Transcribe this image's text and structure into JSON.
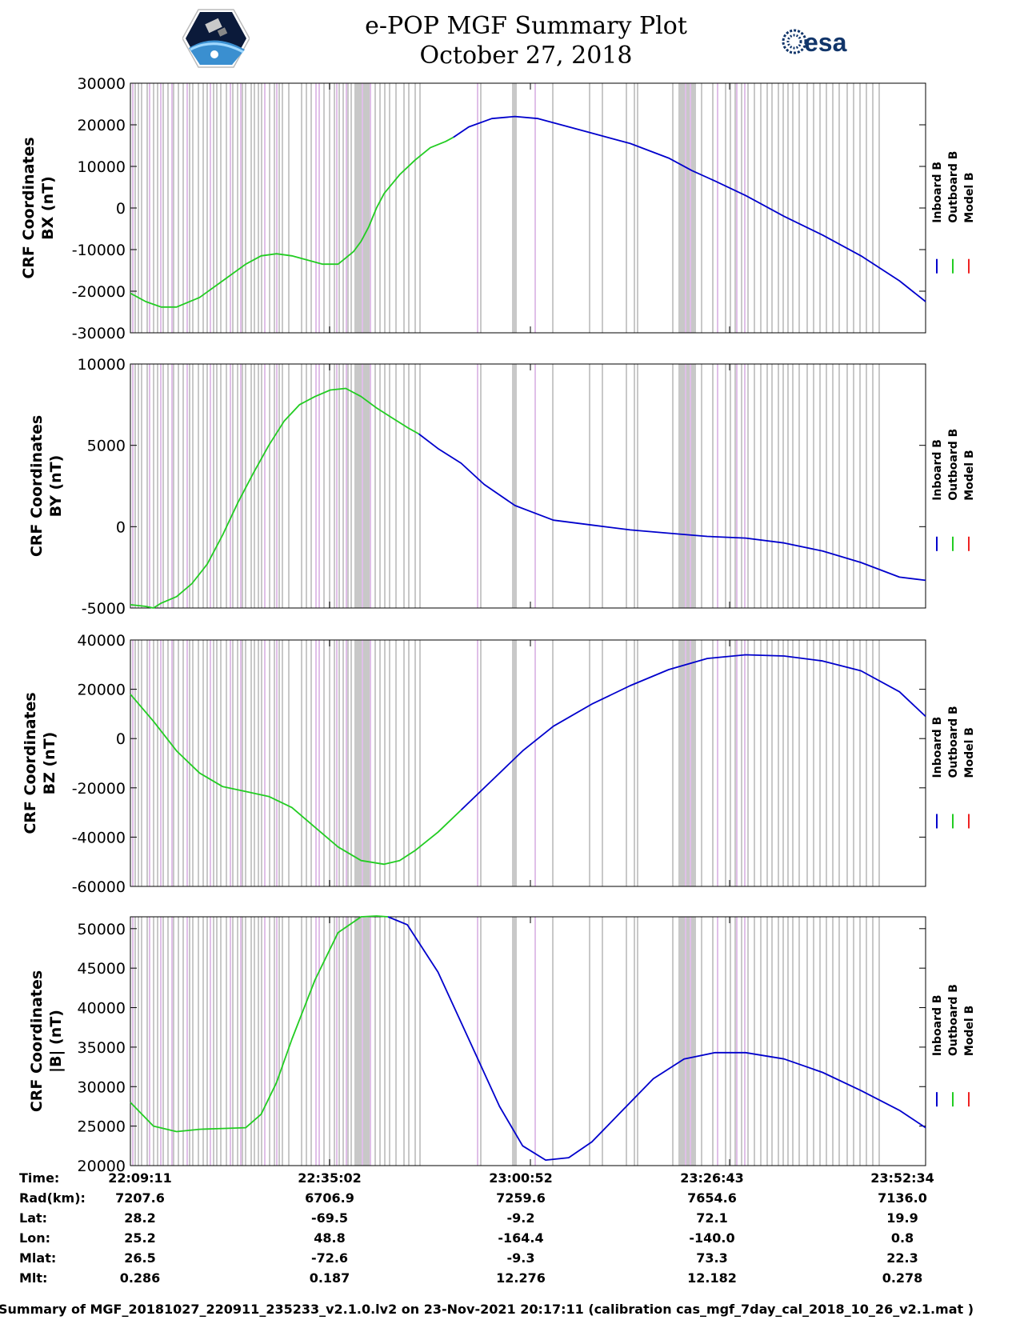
{
  "title": "e-POP MGF Summary Plot",
  "subtitle": "October 27, 2018",
  "logos": {
    "left": "cassiope-logo",
    "right_text": "esa"
  },
  "legend": [
    "Inboard B",
    "Outboard B",
    "Model B"
  ],
  "legend_colors": [
    "#0000cc",
    "#22cc22",
    "#ee2222"
  ],
  "event_colors": {
    "gray": "#c8c8c8",
    "violet": "#e0bfe8"
  },
  "time_table": {
    "row_labels": [
      "Time:",
      "Rad(km):",
      "Lat:",
      "Lon:",
      "Mlat:",
      "Mlt:"
    ],
    "columns": [
      [
        "22:09:11",
        "7207.6",
        "28.2",
        "25.2",
        "26.5",
        "0.286"
      ],
      [
        "22:35:02",
        "6706.9",
        "-69.5",
        "48.8",
        "-72.6",
        "0.187"
      ],
      [
        "23:00:52",
        "7259.6",
        "-9.2",
        "-164.4",
        "-9.3",
        "12.276"
      ],
      [
        "23:26:43",
        "7654.6",
        "72.1",
        "-140.0",
        "73.3",
        "12.182"
      ],
      [
        "23:52:34",
        "7136.0",
        "19.9",
        "0.8",
        "22.3",
        "0.278"
      ]
    ]
  },
  "caption": "Summary of MGF_20181027_220911_235233_v2.1.0.lv2 on 23-Nov-2021 20:17:11 (calibration cas_mgf_7day_cal_2018_10_26_v2.1.mat )",
  "chart_data": [
    {
      "type": "line",
      "ylabel": [
        "CRF Coordinates",
        "BX (nT)"
      ],
      "ylim": [
        -30000,
        30000
      ],
      "yticks": [
        "30000",
        "20000",
        "10000",
        "0",
        "-10000",
        "-20000",
        "-30000"
      ],
      "ytick_values": [
        30000,
        20000,
        10000,
        0,
        -10000,
        -20000,
        -30000
      ],
      "xlim": [
        0,
        103.4
      ],
      "series": [
        {
          "name": "Outboard B",
          "x": [
            0,
            2,
            4,
            6,
            9,
            12,
            15,
            17,
            19,
            21,
            23,
            25,
            27,
            28,
            29,
            30,
            31,
            32,
            33,
            35,
            37,
            39,
            41,
            42
          ],
          "values": [
            -20500,
            -22500,
            -23800,
            -23800,
            -21500,
            -17500,
            -13500,
            -11500,
            -11000,
            -11500,
            -12500,
            -13500,
            -13500,
            -12000,
            -10500,
            -8000,
            -4500,
            0,
            3500,
            8000,
            11500,
            14500,
            16000,
            17000
          ]
        },
        {
          "name": "Inboard B",
          "x": [
            42,
            44,
            47,
            50,
            53,
            56,
            60,
            65,
            70,
            73,
            76,
            80,
            85,
            90,
            95,
            100,
            103.4
          ],
          "values": [
            17000,
            19500,
            21500,
            22000,
            21500,
            20000,
            18000,
            15500,
            12000,
            9000,
            6500,
            3000,
            -2000,
            -6500,
            -11500,
            -17500,
            -22500
          ]
        }
      ]
    },
    {
      "type": "line",
      "ylabel": [
        "CRF Coordinates",
        "BY (nT)"
      ],
      "ylim": [
        -5000,
        10000
      ],
      "yticks": [
        "10000",
        "5000",
        "0",
        "-5000"
      ],
      "ytick_values": [
        10000,
        5000,
        0,
        -5000
      ],
      "xlim": [
        0,
        103.4
      ],
      "series": [
        {
          "name": "Outboard B",
          "x": [
            0,
            2,
            3,
            4,
            6,
            8,
            10,
            12,
            14,
            16,
            18,
            20,
            22,
            24,
            26,
            28,
            30,
            32,
            34,
            36,
            37.5
          ],
          "values": [
            -4800,
            -4900,
            -5000,
            -4700,
            -4300,
            -3500,
            -2300,
            -500,
            1500,
            3300,
            5000,
            6500,
            7500,
            8000,
            8400,
            8500,
            8000,
            7300,
            6700,
            6100,
            5700
          ]
        },
        {
          "name": "Inboard B",
          "x": [
            37.5,
            40,
            43,
            46,
            50,
            55,
            60,
            65,
            70,
            75,
            80,
            85,
            90,
            95,
            100,
            103.4
          ],
          "values": [
            5700,
            4800,
            3900,
            2600,
            1300,
            400,
            100,
            -200,
            -400,
            -600,
            -700,
            -1000,
            -1500,
            -2200,
            -3100,
            -3300
          ]
        }
      ]
    },
    {
      "type": "line",
      "ylabel": [
        "CRF Coordinates",
        "BZ (nT)"
      ],
      "ylim": [
        -60000,
        40000
      ],
      "yticks": [
        "40000",
        "20000",
        "0",
        "-20000",
        "-40000",
        "-60000"
      ],
      "ytick_values": [
        40000,
        20000,
        0,
        -20000,
        -40000,
        -60000
      ],
      "xlim": [
        0,
        103.4
      ],
      "series": [
        {
          "name": "Outboard B",
          "x": [
            0,
            3,
            6,
            9,
            12,
            15,
            18,
            21,
            24,
            27,
            30,
            33,
            35,
            37,
            40,
            43
          ],
          "values": [
            18000,
            7000,
            -5000,
            -14000,
            -19500,
            -21500,
            -23500,
            -28000,
            -36000,
            -44000,
            -49500,
            -51000,
            -49500,
            -45500,
            -38000,
            -29000
          ]
        },
        {
          "name": "Inboard B",
          "x": [
            43,
            47,
            51,
            55,
            60,
            65,
            70,
            75,
            80,
            85,
            90,
            95,
            100,
            103.4
          ],
          "values": [
            -29000,
            -17000,
            -5000,
            5000,
            14000,
            21500,
            28000,
            32500,
            34000,
            33500,
            31500,
            27500,
            19000,
            9000
          ]
        }
      ]
    },
    {
      "type": "line",
      "ylabel": [
        "CRF Coordinates",
        "|B| (nT)"
      ],
      "ylim": [
        20000,
        51500
      ],
      "yticks": [
        "50000",
        "45000",
        "40000",
        "35000",
        "30000",
        "25000",
        "20000"
      ],
      "ytick_values": [
        50000,
        45000,
        40000,
        35000,
        30000,
        25000,
        20000
      ],
      "xlim": [
        0,
        103.4
      ],
      "series": [
        {
          "name": "Outboard B",
          "x": [
            0,
            3,
            6,
            9,
            12,
            15,
            17,
            19,
            21,
            24,
            27,
            30,
            32,
            33.5
          ],
          "values": [
            28000,
            25000,
            24300,
            24600,
            24700,
            24800,
            26500,
            30500,
            36000,
            43500,
            49500,
            51500,
            51600,
            51500
          ]
        },
        {
          "name": "Inboard B",
          "x": [
            33.5,
            36,
            40,
            44,
            48,
            51,
            54,
            57,
            60,
            64,
            68,
            72,
            76,
            80,
            85,
            90,
            95,
            100,
            103.4
          ],
          "values": [
            51500,
            50500,
            44500,
            36000,
            27500,
            22500,
            20700,
            21000,
            23000,
            27000,
            31000,
            33500,
            34300,
            34300,
            33500,
            31800,
            29500,
            27000,
            24800
          ]
        }
      ]
    }
  ]
}
